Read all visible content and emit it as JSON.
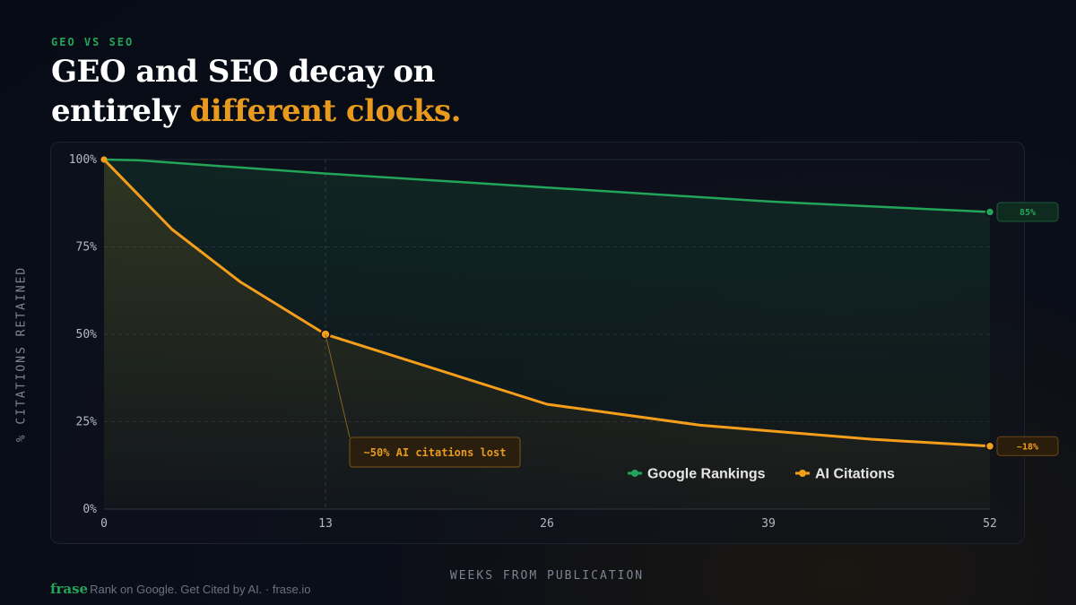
{
  "header": {
    "eyebrow": "GEO VS SEO",
    "headline_part1": "GEO and SEO decay on",
    "headline_part2": "entirely ",
    "headline_accent": "different clocks."
  },
  "chart_data": {
    "type": "line",
    "xlabel": "WEEKS FROM PUBLICATION",
    "ylabel": "% CITATIONS RETAINED",
    "xlim": [
      0,
      52
    ],
    "ylim": [
      0,
      100
    ],
    "x_ticks": [
      0,
      13,
      26,
      39,
      52
    ],
    "y_ticks": [
      0,
      25,
      50,
      75,
      100
    ],
    "y_tick_labels": [
      "0%",
      "25%",
      "50%",
      "75%",
      "100%"
    ],
    "grid": true,
    "legend_position": "bottom-right",
    "series": [
      {
        "name": "Google Rankings",
        "color": "#22a559",
        "x": [
          0,
          2,
          13,
          26,
          39,
          52
        ],
        "y": [
          100,
          99.8,
          96,
          92,
          88,
          85
        ],
        "end_label": "85%"
      },
      {
        "name": "AI Citations",
        "color": "#f59e1b",
        "x": [
          0,
          4,
          8,
          13,
          26,
          35,
          45,
          52
        ],
        "y": [
          100,
          80,
          65,
          50,
          30,
          24,
          20,
          18
        ],
        "end_label": "~18%"
      }
    ],
    "annotation": {
      "text": "~50% AI citations lost",
      "x": 13,
      "y": 50
    }
  },
  "footer": {
    "brand": "frase",
    "tagline": "Rank on Google. Get Cited by AI. · frase.io"
  }
}
